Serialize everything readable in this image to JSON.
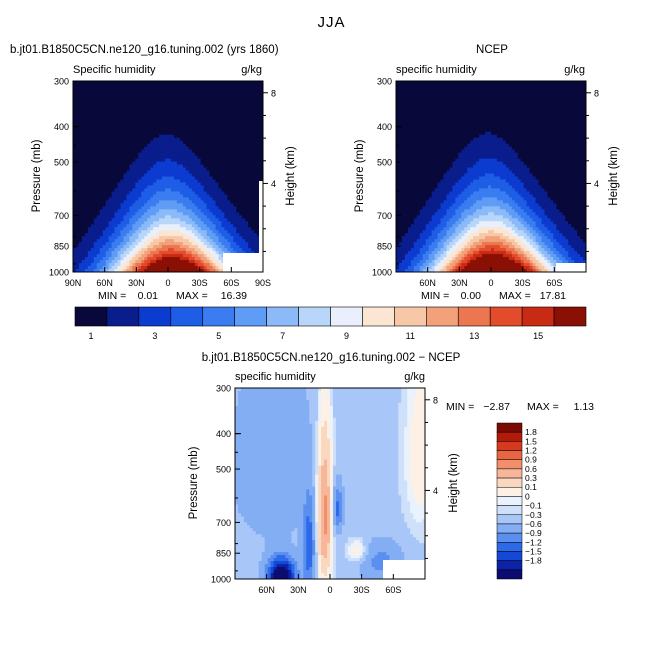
{
  "page_title": "JJA",
  "colors": {
    "seq": [
      "#08083a",
      "#0a1d8c",
      "#0c3bd0",
      "#1e5ee6",
      "#3b7df0",
      "#5f9cf5",
      "#8cbaf8",
      "#b7d6fa",
      "#e9f0fb",
      "#fbe6d3",
      "#f6c8a8",
      "#f2a17a",
      "#ec7650",
      "#e24b2b",
      "#c92a14",
      "#8a1005"
    ],
    "diff": [
      "#0c0b6f",
      "#0c22a8",
      "#1448d6",
      "#2d6ae8",
      "#5a8ff0",
      "#84aef4",
      "#a8c6f7",
      "#cfe0fa",
      "#e9f2fd",
      "#fcf1e4",
      "#fad8c0",
      "#f7b699",
      "#f28f6b",
      "#ea6642",
      "#d63a1e",
      "#b41a0a",
      "#7a0a04"
    ]
  },
  "chart_data": [
    {
      "id": "model",
      "type": "heatmap",
      "header": "b.jt01.B1850C5CN.ne120_g16.tuning.002 (yrs 1860)",
      "left_label": "Specific humidity",
      "units": "g/kg",
      "ylabel": "Pressure (mb)",
      "ylabel_right": "Height (km)",
      "yticks": [
        "300",
        "400",
        "500",
        "700",
        "850",
        "1000"
      ],
      "yticks_right": [
        "8",
        "4"
      ],
      "xticks": [
        "90N",
        "60N",
        "30N",
        "0",
        "30S",
        "60S",
        "90S"
      ],
      "min_label": "MIN =",
      "min_value": "0.01",
      "max_label": "MAX =",
      "max_value": "16.39",
      "peak": 16.39,
      "peak_lat": -5
    },
    {
      "id": "ncep",
      "type": "heatmap",
      "header": "NCEP",
      "left_label": "specific humidity",
      "units": "g/kg",
      "ylabel": "Pressure (mb)",
      "ylabel_right": "Height (km)",
      "yticks": [
        "300",
        "400",
        "500",
        "700",
        "850",
        "1000"
      ],
      "yticks_right": [
        "8",
        "4"
      ],
      "xticks": [
        "60N",
        "30N",
        "0",
        "30S",
        "60S"
      ],
      "min_label": "MIN =",
      "min_value": "0.00",
      "max_label": "MAX =",
      "max_value": "17.81",
      "peak": 17.81,
      "peak_lat": -3
    },
    {
      "id": "diff",
      "type": "heatmap",
      "header": "b.jt01.B1850C5CN.ne120_g16.tuning.002 − NCEP",
      "left_label": "specific humidity",
      "units": "g/kg",
      "ylabel": "Pressure (mb)",
      "ylabel_right": "Height (km)",
      "yticks": [
        "300",
        "400",
        "500",
        "700",
        "850",
        "1000"
      ],
      "yticks_right": [
        "8",
        "4"
      ],
      "xticks": [
        "60N",
        "30N",
        "0",
        "30S",
        "60S"
      ],
      "min_label": "MIN =",
      "min_value": "−2.87",
      "max_label": "MAX =",
      "max_value": "1.13"
    }
  ],
  "colorbar_seq": {
    "labels": [
      "1",
      "3",
      "5",
      "7",
      "9",
      "11",
      "13",
      "15"
    ]
  },
  "colorbar_diff": {
    "labels": [
      "1.8",
      "1.5",
      "1.2",
      "0.9",
      "0.6",
      "0.3",
      "0.1",
      "0",
      "−0.1",
      "−0.3",
      "−0.6",
      "−0.9",
      "−1.2",
      "−1.5",
      "−1.8"
    ]
  }
}
